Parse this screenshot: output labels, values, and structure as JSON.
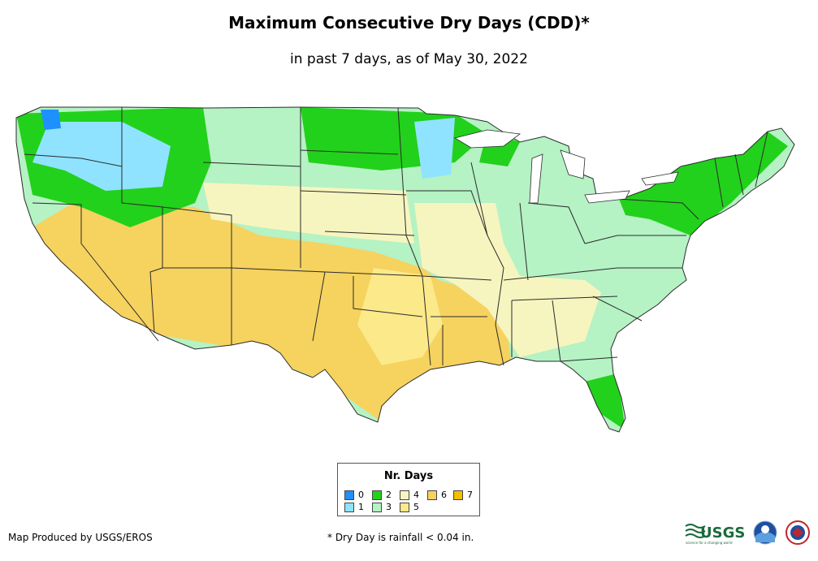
{
  "title": "Maximum Consecutive Dry Days (CDD)*",
  "subtitle": "in past 7 days, as of May 30, 2022",
  "legend": {
    "title": "Nr. Days",
    "items": [
      {
        "label": "0",
        "color": "#1e90ff"
      },
      {
        "label": "1",
        "color": "#8fe3ff"
      },
      {
        "label": "2",
        "color": "#22d11b"
      },
      {
        "label": "3",
        "color": "#b5f2c4"
      },
      {
        "label": "4",
        "color": "#f7f5bf"
      },
      {
        "label": "5",
        "color": "#fbe98a"
      },
      {
        "label": "6",
        "color": "#f6d25f"
      },
      {
        "label": "7",
        "color": "#f2c000"
      }
    ]
  },
  "credit": "Map Produced by USGS/EROS",
  "footnote": "* Dry Day is rainfall < 0.04 in.",
  "logos": {
    "usgs_text": "USGS",
    "usgs_tagline": "science for a changing world"
  },
  "colors": {
    "state_border": "#2b2b2b"
  }
}
